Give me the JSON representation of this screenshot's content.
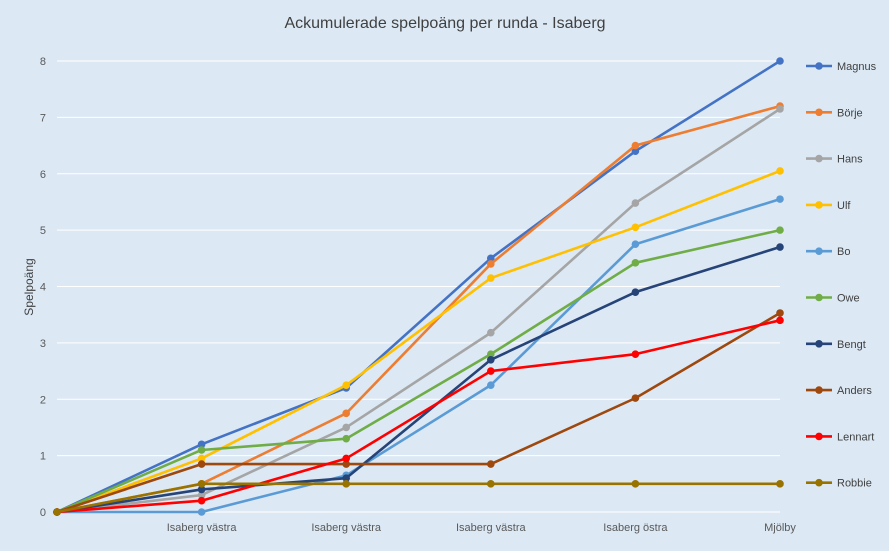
{
  "chart_data": {
    "type": "line",
    "title": "Ackumulerade spelpoäng per runda - Isaberg",
    "xlabel": "",
    "ylabel": "Spelpoäng",
    "categories": [
      "",
      "Isaberg västra",
      "Isaberg västra",
      "Isaberg västra",
      "Isaberg östra",
      "Mjölby"
    ],
    "ylim": [
      0,
      8
    ],
    "yticks": [
      "0",
      "1",
      "2",
      "3",
      "4",
      "5",
      "6",
      "7",
      "8"
    ],
    "grid": true,
    "legend_position": "right",
    "series": [
      {
        "name": "Magnus",
        "color": "#4472c4",
        "values": [
          0,
          1.2,
          2.2,
          4.5,
          6.4,
          8.0
        ]
      },
      {
        "name": "Börje",
        "color": "#ed7d31",
        "values": [
          0,
          0.5,
          1.75,
          4.4,
          6.5,
          7.2
        ]
      },
      {
        "name": "Hans",
        "color": "#a5a5a5",
        "values": [
          0,
          0.3,
          1.5,
          3.18,
          5.48,
          7.15
        ]
      },
      {
        "name": "Ulf",
        "color": "#ffc000",
        "values": [
          0,
          0.95,
          2.25,
          4.15,
          5.05,
          6.05
        ]
      },
      {
        "name": "Bo",
        "color": "#5b9bd5",
        "values": [
          0,
          0,
          0.65,
          2.25,
          4.75,
          5.55
        ]
      },
      {
        "name": "Owe",
        "color": "#70ad47",
        "values": [
          0,
          1.1,
          1.3,
          2.8,
          4.42,
          5.0
        ]
      },
      {
        "name": "Bengt",
        "color": "#264478",
        "values": [
          0,
          0.4,
          0.6,
          2.7,
          3.9,
          4.7
        ]
      },
      {
        "name": "Anders",
        "color": "#9e480e",
        "values": [
          0,
          0.85,
          0.85,
          0.85,
          2.02,
          3.53
        ]
      },
      {
        "name": "Lennart",
        "color": "#ff0000",
        "values": [
          0,
          0.2,
          0.95,
          2.5,
          2.8,
          3.4
        ]
      },
      {
        "name": "Robbie",
        "color": "#997300",
        "values": [
          0,
          0.5,
          0.5,
          0.5,
          0.5,
          0.5
        ]
      }
    ]
  }
}
